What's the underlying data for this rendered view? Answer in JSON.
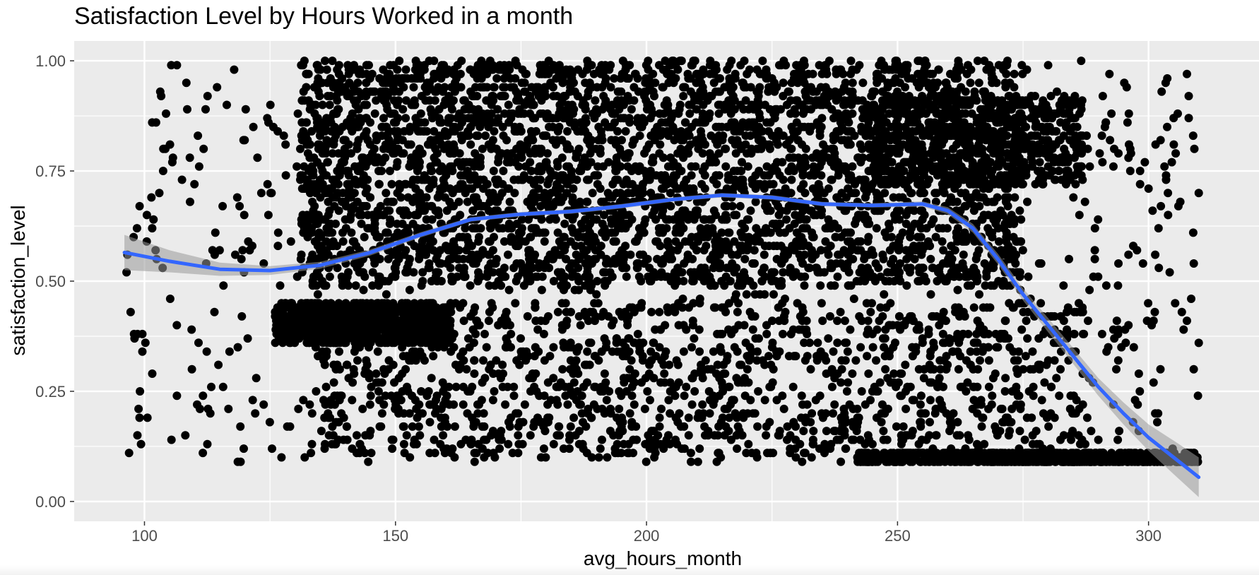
{
  "chart_data": {
    "type": "scatter",
    "title": "Satisfaction Level by Hours Worked in a month",
    "xlabel": "avg_hours_month",
    "ylabel": "satisfaction_level",
    "xlim": [
      86,
      322
    ],
    "ylim": [
      -0.045,
      1.045
    ],
    "x_ticks": [
      100,
      150,
      200,
      250,
      300
    ],
    "x_tick_labels": [
      "100",
      "150",
      "200",
      "250",
      "300"
    ],
    "y_ticks": [
      0.0,
      0.25,
      0.5,
      0.75,
      1.0
    ],
    "y_tick_labels": [
      "0.00",
      "0.25",
      "0.50",
      "0.75",
      "1.00"
    ],
    "grid": true,
    "legend": "none",
    "colors": {
      "panel_background": "#ebebeb",
      "grid_major": "#ffffff",
      "points": "#000000",
      "smooth_line": "#3366ff",
      "confidence_band": "#999999"
    },
    "point_clusters": [
      {
        "x_range": [
          96,
          310
        ],
        "y_range": [
          0.09,
          1.0
        ],
        "count": 900,
        "note": "scattered background points"
      },
      {
        "x_range": [
          131,
          275
        ],
        "y_range": [
          0.49,
          1.0
        ],
        "count": 3600
      },
      {
        "x_range": [
          126,
          161
        ],
        "y_range": [
          0.36,
          0.45
        ],
        "count": 900
      },
      {
        "x_range": [
          242,
          310
        ],
        "y_range": [
          0.09,
          0.11
        ],
        "count": 700
      },
      {
        "x_range": [
          245,
          287
        ],
        "y_range": [
          0.72,
          0.92
        ],
        "count": 600
      },
      {
        "x_range": [
          135,
          287
        ],
        "y_range": [
          0.1,
          0.45
        ],
        "count": 1200
      }
    ],
    "smooth_line": {
      "x": [
        96,
        105,
        115,
        125,
        135,
        145,
        155,
        165,
        175,
        185,
        195,
        205,
        215,
        225,
        235,
        245,
        255,
        260,
        265,
        270,
        275,
        280,
        285,
        290,
        295,
        300,
        305,
        310
      ],
      "y": [
        0.565,
        0.545,
        0.527,
        0.524,
        0.536,
        0.565,
        0.605,
        0.64,
        0.652,
        0.658,
        0.67,
        0.685,
        0.695,
        0.69,
        0.675,
        0.672,
        0.675,
        0.66,
        0.62,
        0.55,
        0.47,
        0.4,
        0.33,
        0.26,
        0.2,
        0.145,
        0.1,
        0.055
      ],
      "ci_halfwidth": [
        0.04,
        0.025,
        0.015,
        0.01,
        0.008,
        0.007,
        0.006,
        0.005,
        0.005,
        0.005,
        0.005,
        0.005,
        0.005,
        0.005,
        0.005,
        0.005,
        0.006,
        0.008,
        0.01,
        0.012,
        0.014,
        0.016,
        0.018,
        0.02,
        0.025,
        0.03,
        0.038,
        0.045
      ]
    },
    "isolated_points": [
      {
        "x": 214,
        "y": 0.09
      },
      {
        "x": 179,
        "y": 0.1
      },
      {
        "x": 310,
        "y": 0.7
      },
      {
        "x": 308,
        "y": 0.92
      },
      {
        "x": 305,
        "y": 0.87
      },
      {
        "x": 308,
        "y": 0.87
      },
      {
        "x": 300,
        "y": 0.71
      },
      {
        "x": 301,
        "y": 0.41
      },
      {
        "x": 301,
        "y": 0.27
      },
      {
        "x": 310,
        "y": 0.36
      },
      {
        "x": 309,
        "y": 0.3
      },
      {
        "x": 296,
        "y": 0.56
      },
      {
        "x": 296,
        "y": 0.4
      },
      {
        "x": 294,
        "y": 0.39
      },
      {
        "x": 294,
        "y": 0.54
      },
      {
        "x": 293,
        "y": 0.76
      },
      {
        "x": 294,
        "y": 0.79
      },
      {
        "x": 296,
        "y": 0.78
      },
      {
        "x": 293,
        "y": 0.22
      },
      {
        "x": 290,
        "y": 0.14
      },
      {
        "x": 280,
        "y": 0.99
      }
    ]
  }
}
